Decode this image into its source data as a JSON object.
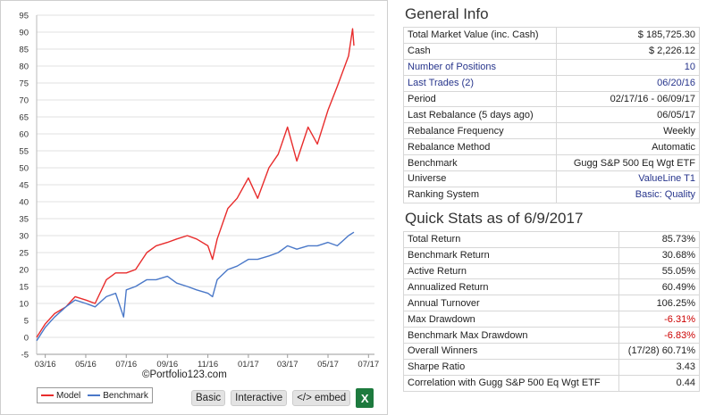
{
  "chart": {
    "copyright": "©Portfolio123.com",
    "legend": [
      {
        "label": "Model",
        "color": "#e82c2c"
      },
      {
        "label": "Benchmark",
        "color": "#4a78c8"
      }
    ],
    "buttons": {
      "basic": "Basic",
      "interactive": "Interactive",
      "embed": "</> embed",
      "excel": "X"
    }
  },
  "chart_data": {
    "type": "line",
    "title": "",
    "xlabel": "",
    "ylabel": "",
    "ylim": [
      -5,
      95
    ],
    "yticks": [
      -5,
      0,
      5,
      10,
      15,
      20,
      25,
      30,
      35,
      40,
      45,
      50,
      55,
      60,
      65,
      70,
      75,
      80,
      85,
      90,
      95
    ],
    "xtick_labels": [
      "03/16",
      "05/16",
      "07/16",
      "09/16",
      "11/16",
      "01/17",
      "03/17",
      "05/17",
      "07/17"
    ],
    "xlim": [
      "2016-02-17",
      "2017-07-10"
    ],
    "grid": true,
    "legend_position": "bottom-left",
    "series": [
      {
        "name": "Model",
        "color": "#e82c2c",
        "x": [
          "2016-02-17",
          "2016-03-01",
          "2016-03-15",
          "2016-04-01",
          "2016-04-15",
          "2016-05-01",
          "2016-05-15",
          "2016-06-01",
          "2016-06-15",
          "2016-07-01",
          "2016-07-15",
          "2016-08-01",
          "2016-08-15",
          "2016-09-01",
          "2016-09-15",
          "2016-10-01",
          "2016-10-15",
          "2016-11-01",
          "2016-11-08",
          "2016-11-15",
          "2016-12-01",
          "2016-12-15",
          "2017-01-01",
          "2017-01-15",
          "2017-02-01",
          "2017-02-15",
          "2017-03-01",
          "2017-03-15",
          "2017-04-01",
          "2017-04-15",
          "2017-05-01",
          "2017-05-15",
          "2017-06-01",
          "2017-06-07",
          "2017-06-09"
        ],
        "values": [
          0,
          4,
          7,
          9,
          12,
          11,
          10,
          17,
          19,
          19,
          20,
          25,
          27,
          28,
          29,
          30,
          29,
          27,
          23,
          29,
          38,
          41,
          47,
          41,
          50,
          54,
          62,
          52,
          62,
          57,
          67,
          74,
          83,
          91,
          86
        ]
      },
      {
        "name": "Benchmark",
        "color": "#4a78c8",
        "x": [
          "2016-02-17",
          "2016-03-01",
          "2016-03-15",
          "2016-04-01",
          "2016-04-15",
          "2016-05-01",
          "2016-05-15",
          "2016-06-01",
          "2016-06-15",
          "2016-06-27",
          "2016-07-01",
          "2016-07-15",
          "2016-08-01",
          "2016-08-15",
          "2016-09-01",
          "2016-09-15",
          "2016-10-01",
          "2016-10-15",
          "2016-11-01",
          "2016-11-08",
          "2016-11-15",
          "2016-12-01",
          "2016-12-15",
          "2017-01-01",
          "2017-01-15",
          "2017-02-01",
          "2017-02-15",
          "2017-03-01",
          "2017-03-15",
          "2017-04-01",
          "2017-04-15",
          "2017-05-01",
          "2017-05-15",
          "2017-06-01",
          "2017-06-09"
        ],
        "values": [
          -1,
          3,
          6,
          9,
          11,
          10,
          9,
          12,
          13,
          6,
          14,
          15,
          17,
          17,
          18,
          16,
          15,
          14,
          13,
          12,
          17,
          20,
          21,
          23,
          23,
          24,
          25,
          27,
          26,
          27,
          27,
          28,
          27,
          30,
          31
        ]
      }
    ]
  },
  "general_info": {
    "title": "General Info",
    "rows": [
      {
        "label": "Total Market Value (inc. Cash)",
        "value": "$ 185,725.30"
      },
      {
        "label": "Cash",
        "value": "$ 2,226.12"
      },
      {
        "label": "Number of Positions",
        "value": "10"
      },
      {
        "label": "Last Trades (2)",
        "value": "06/20/16"
      },
      {
        "label": "Period",
        "value": "02/17/16 - 06/09/17"
      },
      {
        "label": "Last Rebalance (5 days ago)",
        "value": "06/05/17"
      },
      {
        "label": "Rebalance Frequency",
        "value": "Weekly"
      },
      {
        "label": "Rebalance Method",
        "value": "Automatic"
      },
      {
        "label": "Benchmark",
        "value": "Gugg S&P 500 Eq Wgt ETF"
      },
      {
        "label": "Universe",
        "value": "ValueLine T1"
      },
      {
        "label": "Ranking System",
        "value": "Basic: Quality"
      }
    ]
  },
  "quick_stats": {
    "title": "Quick Stats as of 6/9/2017",
    "rows": [
      {
        "label": "Total Return",
        "value": "85.73%"
      },
      {
        "label": "Benchmark Return",
        "value": "30.68%"
      },
      {
        "label": "Active Return",
        "value": "55.05%"
      },
      {
        "label": "Annualized Return",
        "value": "60.49%"
      },
      {
        "label": "Annual Turnover",
        "value": "106.25%"
      },
      {
        "label": "Max Drawdown",
        "value": "-6.31%"
      },
      {
        "label": "Benchmark Max Drawdown",
        "value": "-6.83%"
      },
      {
        "label": "Overall Winners",
        "value": "(17/28) 60.71%"
      },
      {
        "label": "Sharpe Ratio",
        "value": "3.43"
      },
      {
        "label": "Correlation with Gugg S&P 500 Eq Wgt ETF",
        "value": "0.44"
      }
    ]
  }
}
